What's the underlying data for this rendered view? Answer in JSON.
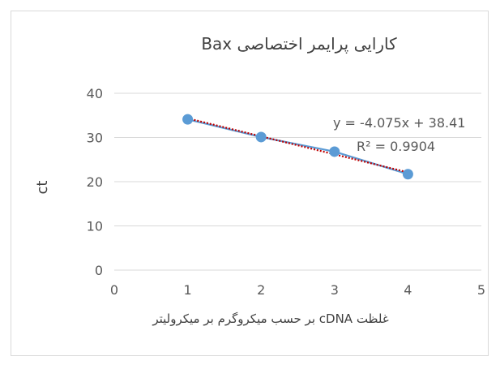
{
  "chart_data": {
    "type": "scatter",
    "title": "کارایی پرایمر اختصاصی Bax",
    "xlabel": "غلظت cDNA بر حسب میکروگرم بر میکرولیتر",
    "ylabel": "ct",
    "xlim": [
      0,
      5
    ],
    "ylim": [
      0,
      40
    ],
    "x_ticks": [
      "0",
      "1",
      "2",
      "3",
      "4",
      "5"
    ],
    "y_ticks": [
      "0",
      "10",
      "20",
      "30",
      "40"
    ],
    "grid": "horizontal",
    "legend": "none",
    "series": [
      {
        "x": [
          1,
          2,
          3,
          4
        ],
        "y": [
          34.1,
          30.1,
          26.8,
          21.7
        ],
        "color": "#5b9bd5"
      }
    ],
    "trendline": {
      "type": "linear",
      "slope": -4.075,
      "intercept": 38.41,
      "x_range": [
        1,
        4
      ],
      "color": "#c00000",
      "style": "dotted"
    },
    "annotations": {
      "equation": "y = -4.075x + 38.41",
      "r_squared": "R² = 0.9904"
    }
  }
}
